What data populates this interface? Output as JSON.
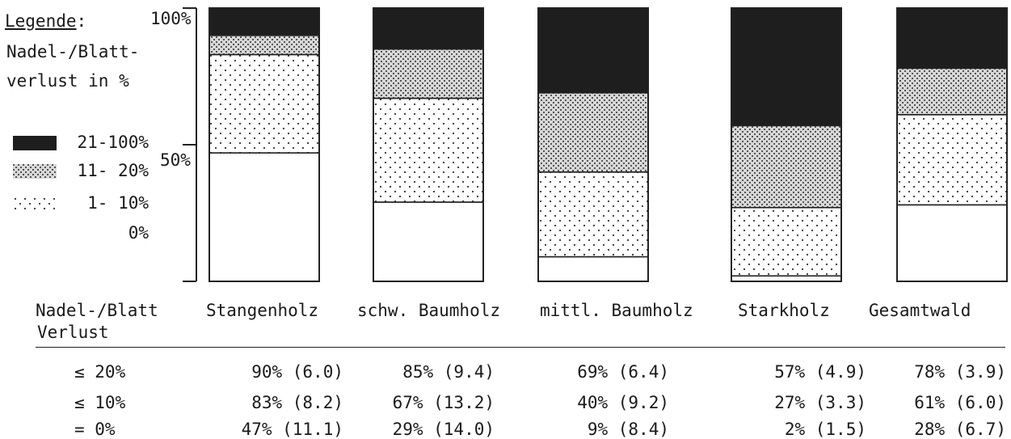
{
  "legend": {
    "title": "Legende",
    "title_suffix": ":",
    "subtitle_line1": "Nadel-/Blatt-",
    "subtitle_line2": "verlust in %",
    "items": [
      {
        "label": "21-100%",
        "pattern": "solid-dark"
      },
      {
        "label": "11- 20%",
        "pattern": "crosshatch"
      },
      {
        "label": "1- 10%",
        "pattern": "dots"
      },
      {
        "label": "0%",
        "pattern": "blank"
      }
    ]
  },
  "axis": {
    "tick_100": "100%",
    "tick_50": "50%"
  },
  "chart_data": {
    "type": "bar",
    "stacked": true,
    "orientation": "vertical",
    "ylim": [
      0,
      100
    ],
    "categories": [
      "Stangenholz",
      "schw. Baumholz",
      "mittl. Baumholz",
      "Starkholz",
      "Gesamtwald"
    ],
    "series": [
      {
        "name": "0%",
        "values": [
          47,
          29,
          9,
          2,
          28
        ]
      },
      {
        "name": "1- 10%",
        "values": [
          36,
          38,
          31,
          25,
          33
        ]
      },
      {
        "name": "11- 20%",
        "values": [
          7,
          18,
          29,
          30,
          17
        ]
      },
      {
        "name": "21-100%",
        "values": [
          10,
          15,
          31,
          43,
          22
        ]
      }
    ],
    "colors": {
      "dark": "#1e1e1e",
      "ink": "#222222",
      "dot": "#333333",
      "paper": "#ffffff"
    }
  },
  "table": {
    "header_line1": "Nadel-/Blatt",
    "header_line2": "Verlust",
    "rows": [
      {
        "label": "≤ 20%",
        "cells": [
          "90% (6.0)",
          "85% (9.4)",
          "69% (6.4)",
          "57% (4.9)",
          "78% (3.9)"
        ]
      },
      {
        "label": "≤ 10%",
        "cells": [
          "83% (8.2)",
          "67% (13.2)",
          "40% (9.2)",
          "27% (3.3)",
          "61% (6.0)"
        ]
      },
      {
        "label": "= 0%",
        "cells": [
          "47% (11.1)",
          "29% (14.0)",
          "9% (8.4)",
          "2% (1.5)",
          "28% (6.7)"
        ]
      }
    ]
  }
}
